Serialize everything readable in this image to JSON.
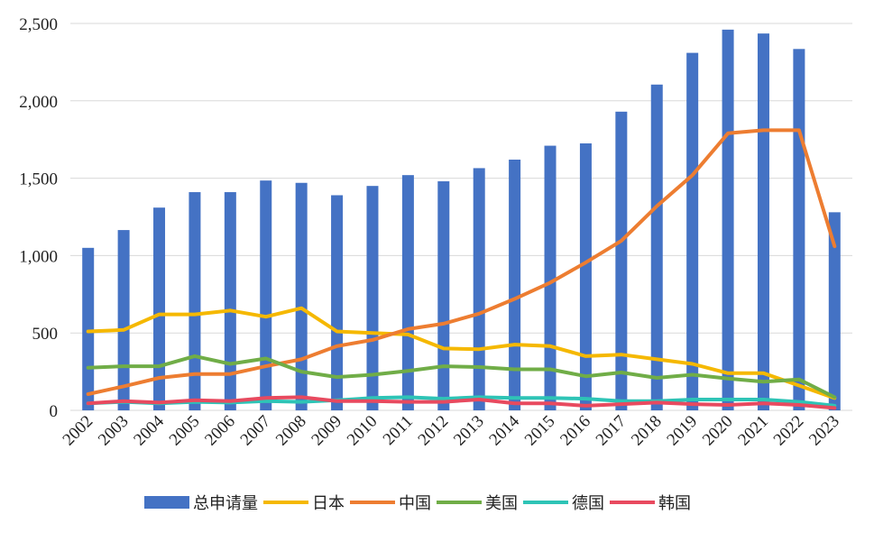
{
  "chart_data": {
    "type": "bar",
    "categories": [
      "2002",
      "2003",
      "2004",
      "2005",
      "2006",
      "2007",
      "2008",
      "2009",
      "2010",
      "2011",
      "2012",
      "2013",
      "2014",
      "2015",
      "2016",
      "2017",
      "2018",
      "2019",
      "2020",
      "2021",
      "2022",
      "2023"
    ],
    "ylim": [
      0,
      2500
    ],
    "yticks": [
      0,
      500,
      1000,
      1500,
      2000,
      2500
    ],
    "ytick_labels": [
      "0",
      "500",
      "1,000",
      "1,500",
      "2,000",
      "2,500"
    ],
    "grid": true,
    "legend_position": "bottom",
    "bar_series": {
      "name": "总申请量",
      "color": "#4472C4",
      "values": [
        1050,
        1165,
        1310,
        1410,
        1410,
        1485,
        1470,
        1390,
        1450,
        1520,
        1480,
        1565,
        1620,
        1710,
        1725,
        1930,
        2105,
        2310,
        2460,
        2435,
        2335,
        1280
      ]
    },
    "line_series": [
      {
        "name": "日本",
        "color": "#F5B800",
        "values": [
          510,
          520,
          620,
          620,
          645,
          605,
          660,
          510,
          500,
          490,
          400,
          395,
          425,
          415,
          350,
          360,
          330,
          300,
          240,
          240,
          160,
          80
        ]
      },
      {
        "name": "中国",
        "color": "#ED7D31",
        "values": [
          105,
          155,
          210,
          235,
          235,
          285,
          330,
          415,
          455,
          525,
          560,
          625,
          720,
          825,
          955,
          1095,
          1320,
          1520,
          1790,
          1810,
          1810,
          1060
        ]
      },
      {
        "name": "美国",
        "color": "#70AD47",
        "values": [
          275,
          285,
          285,
          350,
          300,
          335,
          250,
          215,
          230,
          255,
          285,
          280,
          265,
          265,
          220,
          245,
          210,
          230,
          205,
          185,
          200,
          85
        ]
      },
      {
        "name": "德国",
        "color": "#2EC4B6",
        "values": [
          45,
          55,
          45,
          55,
          50,
          60,
          55,
          65,
          80,
          85,
          75,
          85,
          80,
          80,
          75,
          60,
          60,
          70,
          70,
          70,
          55,
          30
        ]
      },
      {
        "name": "韩国",
        "color": "#E84A5F",
        "values": [
          45,
          60,
          50,
          65,
          60,
          80,
          85,
          60,
          60,
          55,
          55,
          70,
          45,
          45,
          30,
          40,
          50,
          40,
          35,
          45,
          35,
          15
        ]
      }
    ]
  }
}
